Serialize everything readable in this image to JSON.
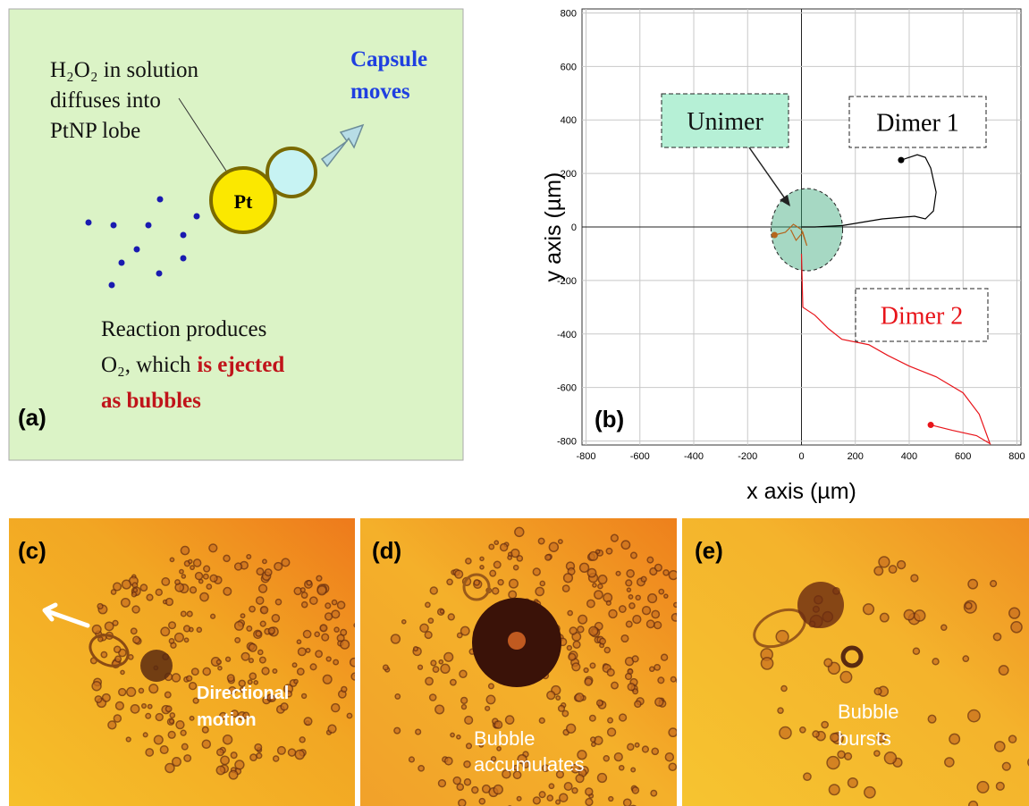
{
  "chart_data": {
    "type": "line",
    "panel_label": "(b)",
    "x_label": "x axis (µm)",
    "y_label": "y axis (µm)",
    "xlim": [
      -815,
      815
    ],
    "ylim": [
      -815,
      815
    ],
    "xticks": [
      -800,
      -600,
      -400,
      -200,
      0,
      200,
      400,
      600,
      800
    ],
    "yticks": [
      -800,
      -600,
      -400,
      -200,
      0,
      200,
      400,
      600,
      800
    ],
    "grid": true,
    "series": [
      {
        "name": "Unimer",
        "color": "#b5651d",
        "x": [
          -100,
          -60,
          -30,
          0,
          10,
          20,
          5,
          -20,
          -40
        ],
        "values": [
          -30,
          -20,
          10,
          -10,
          -40,
          -70,
          -20,
          -50,
          -10
        ]
      },
      {
        "name": "Dimer 1",
        "color": "#000000",
        "x": [
          370,
          430,
          460,
          480,
          500,
          490,
          460,
          420,
          300,
          150,
          50,
          0
        ],
        "values": [
          250,
          270,
          260,
          220,
          130,
          60,
          30,
          40,
          30,
          5,
          0,
          0
        ]
      },
      {
        "name": "Dimer 2",
        "color": "#e8141a",
        "x": [
          480,
          560,
          650,
          700,
          660,
          600,
          500,
          400,
          320,
          250,
          150,
          100,
          50,
          5,
          0
        ],
        "values": [
          -740,
          -760,
          -780,
          -810,
          -700,
          -620,
          -560,
          -520,
          -480,
          -440,
          -420,
          -380,
          -330,
          -300,
          -100
        ]
      }
    ]
  },
  "panel_a": {
    "label": "(a)",
    "diffusion_text": [
      "H₂O₂ in solution",
      "diffuses into",
      "PtNP lobe"
    ],
    "capsule_text": [
      "Capsule",
      "moves"
    ],
    "pt_label": "Pt",
    "reaction_text": [
      "Reaction produces",
      "O₂, which"
    ],
    "ejected_text": [
      "is ejected",
      "as bubbles"
    ]
  },
  "panel_c": {
    "label": "(c)",
    "caption": [
      "Directional",
      "motion"
    ]
  },
  "panel_d": {
    "label": "(d)",
    "caption": [
      "Bubble",
      "accumulates"
    ]
  },
  "panel_e": {
    "label": "(e)",
    "caption": [
      "Bubble",
      "bursts"
    ]
  }
}
